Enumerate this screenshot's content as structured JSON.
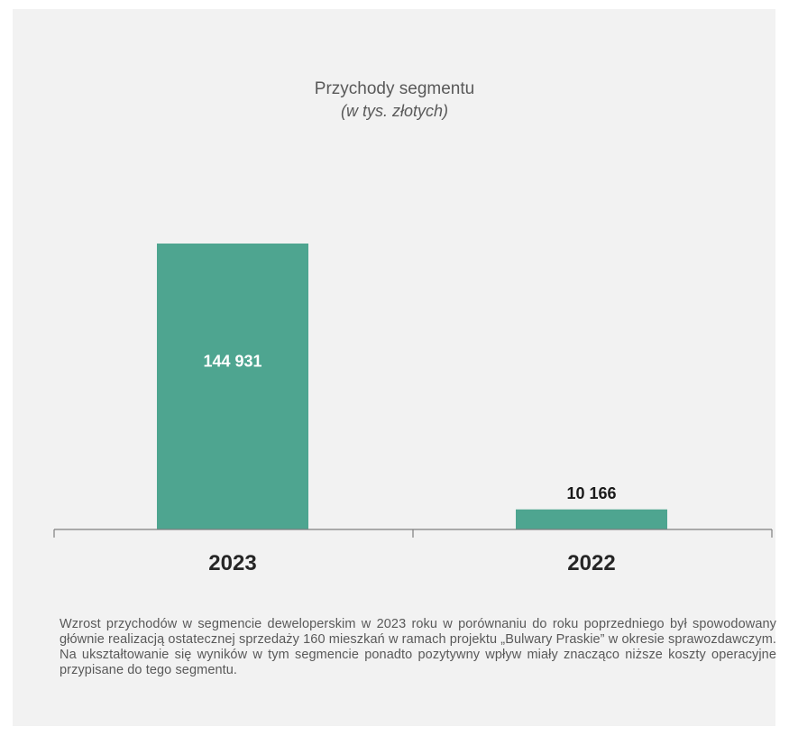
{
  "chart_data": {
    "type": "bar",
    "title": "Przychody segmentu",
    "subtitle": "(w tys. złotych)",
    "categories": [
      "2023",
      "2022"
    ],
    "values": [
      144931,
      10166
    ],
    "value_labels": [
      "144 931",
      "10 166"
    ],
    "ylim": [
      0,
      200000
    ],
    "grid": false,
    "legend": "none",
    "bar_color": "#4ea590"
  },
  "caption": "Wzrost przychodów w segmencie deweloperskim w 2023 roku w porównaniu do roku poprzedniego był spowodowany głównie realizacją ostatecznej sprzedaży 160 mieszkań w ramach projektu „Bulwary Praskie” w okresie sprawozdawczym. Na ukształtowanie się wyników w tym segmencie ponadto pozytywny wpływ miały znacząco niższe koszty operacyjne przypisane do tego segmentu."
}
